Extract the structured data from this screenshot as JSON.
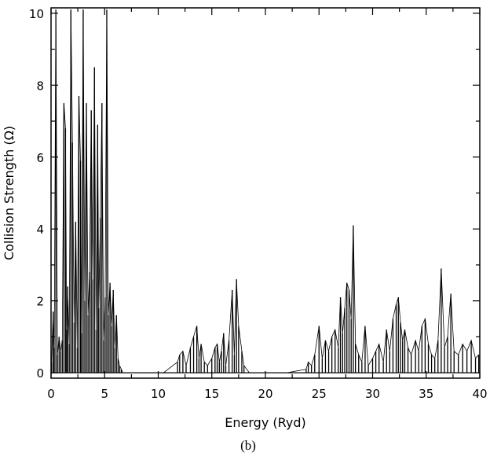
{
  "chart_data": {
    "type": "line",
    "title": "",
    "xlabel": "Energy (Ryd)",
    "ylabel": "Collision Strength (Ω)",
    "caption": "(b)",
    "xlim": [
      0,
      40
    ],
    "ylim": [
      -0.15,
      10.15
    ],
    "x_ticks": [
      0,
      5,
      10,
      15,
      20,
      25,
      30,
      35,
      40
    ],
    "y_ticks": [
      0,
      2,
      4,
      6,
      8,
      10
    ],
    "x_minor_ticks": [
      2.5,
      7.5,
      12.5,
      17.5,
      22.5,
      27.5,
      32.5,
      37.5
    ],
    "y_minor_ticks": [
      1,
      3,
      5,
      7,
      9
    ],
    "grid": false,
    "legend": "none",
    "series": [
      {
        "x": [
          0.05,
          0.2,
          0.3,
          0.45,
          0.6,
          0.75,
          0.9,
          1.05,
          1.2,
          1.35,
          1.45,
          1.55,
          1.7,
          1.85,
          2.0,
          2.15,
          2.3,
          2.45,
          2.6,
          2.75,
          2.85,
          3.0,
          3.15,
          3.3,
          3.45,
          3.6,
          3.75,
          3.9,
          4.05,
          4.2,
          4.35,
          4.45,
          4.6,
          4.75,
          4.9,
          5.05,
          5.2,
          5.35,
          5.5,
          5.65,
          5.8,
          5.95,
          6.1,
          6.25,
          6.4,
          6.55,
          6.7,
          6.85,
          7.5,
          9.0,
          10.5,
          11.8,
          12.0,
          12.3,
          12.6,
          13.0,
          13.3,
          13.6,
          13.8,
          14.0,
          14.3,
          14.6,
          15.0,
          15.3,
          15.5,
          15.7,
          15.9,
          16.1,
          16.3,
          16.6,
          16.9,
          17.1,
          17.3,
          17.5,
          17.8,
          18.0,
          18.5,
          20.0,
          22.0,
          23.8,
          24.0,
          24.3,
          24.6,
          25.0,
          25.3,
          25.6,
          25.9,
          26.2,
          26.5,
          26.8,
          27.0,
          27.2,
          27.4,
          27.6,
          27.8,
          28.0,
          28.2,
          28.4,
          28.7,
          29.0,
          29.3,
          29.6,
          30.0,
          30.3,
          30.6,
          31.0,
          31.3,
          31.6,
          31.9,
          32.2,
          32.4,
          32.6,
          32.8,
          33.0,
          33.3,
          33.6,
          34.0,
          34.3,
          34.6,
          34.9,
          35.2,
          35.5,
          35.8,
          36.1,
          36.4,
          36.7,
          37.0,
          37.3,
          37.6,
          38.0,
          38.4,
          38.8,
          39.2,
          39.6,
          39.9
        ],
        "y": [
          0.3,
          1.7,
          0.7,
          10.1,
          0.5,
          1.0,
          0.6,
          0.9,
          7.5,
          6.8,
          1.2,
          2.4,
          0.8,
          10.1,
          6.4,
          1.4,
          4.2,
          0.7,
          7.7,
          5.9,
          1.1,
          10.1,
          2.0,
          7.5,
          1.6,
          2.8,
          7.3,
          2.6,
          8.5,
          1.2,
          6.9,
          1.8,
          4.3,
          7.5,
          0.9,
          2.1,
          10.1,
          1.6,
          2.5,
          1.3,
          2.3,
          0.7,
          1.6,
          0.4,
          0.2,
          0.1,
          0.0,
          0.0,
          0.0,
          0.0,
          0.0,
          0.3,
          0.5,
          0.6,
          0.2,
          0.7,
          1.0,
          1.3,
          0.4,
          0.8,
          0.3,
          0.2,
          0.4,
          0.7,
          0.8,
          0.3,
          0.6,
          1.1,
          0.2,
          0.9,
          2.3,
          0.5,
          2.6,
          1.3,
          0.6,
          0.2,
          0.0,
          0.0,
          0.0,
          0.1,
          0.3,
          0.2,
          0.5,
          1.3,
          0.4,
          0.9,
          0.6,
          1.0,
          1.2,
          0.7,
          2.1,
          1.1,
          1.8,
          2.5,
          2.3,
          1.5,
          4.1,
          0.8,
          0.5,
          0.3,
          1.3,
          0.2,
          0.4,
          0.6,
          0.8,
          0.3,
          1.2,
          0.6,
          1.5,
          1.9,
          2.1,
          1.4,
          0.9,
          1.2,
          0.7,
          0.5,
          0.9,
          0.6,
          1.3,
          1.5,
          0.8,
          0.5,
          0.4,
          0.9,
          2.9,
          0.7,
          1.0,
          2.2,
          0.6,
          0.5,
          0.8,
          0.6,
          0.9,
          0.4,
          0.5
        ]
      }
    ]
  }
}
